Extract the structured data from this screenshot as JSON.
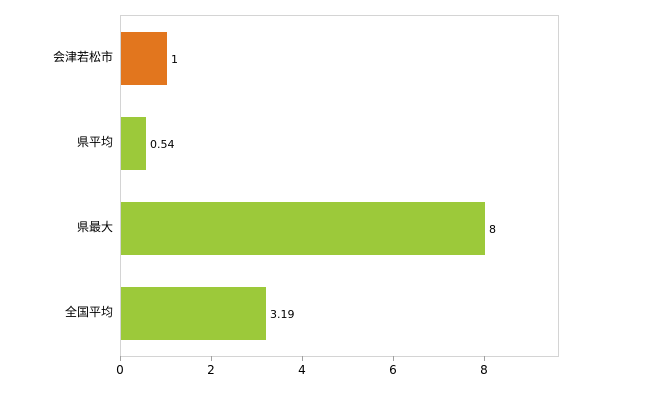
{
  "chart_data": {
    "type": "bar",
    "orientation": "horizontal",
    "title": "",
    "xlabel": "",
    "ylabel": "",
    "categories": [
      "会津若松市",
      "県平均",
      "県最大",
      "全国平均"
    ],
    "values": [
      1,
      0.54,
      8,
      3.19
    ],
    "value_labels": [
      "1",
      "0.54",
      "8",
      "3.19"
    ],
    "bar_colors": [
      "#e2761e",
      "#9cc93a",
      "#9cc93a",
      "#9cc93a"
    ],
    "xlim": [
      0,
      9.6
    ],
    "x_ticks": [
      0,
      2,
      4,
      6,
      8
    ],
    "grid": false,
    "legend": false
  },
  "colors": {
    "axis": "#d4d4d4",
    "tick": "#a0a0a0",
    "text": "#000000",
    "background": "#ffffff"
  }
}
